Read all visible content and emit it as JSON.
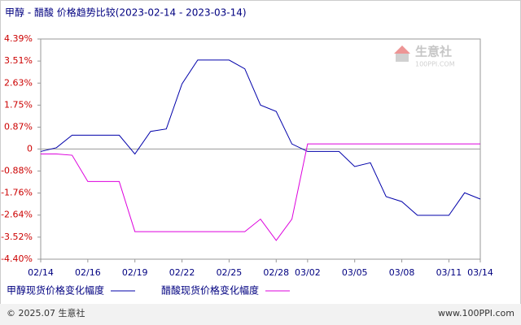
{
  "chart_data": {
    "type": "line",
    "title": "甲醇 - 醋酸 价格趋势比较(2023-02-14 - 2023-03-14)",
    "categories": [
      "02/14",
      null,
      null,
      "02/16",
      null,
      null,
      "02/19",
      null,
      null,
      "02/22",
      null,
      null,
      "02/25",
      null,
      null,
      "02/28",
      null,
      "03/02",
      null,
      null,
      "03/05",
      null,
      null,
      "03/08",
      null,
      null,
      "03/11",
      null,
      "03/14"
    ],
    "series": [
      {
        "name": "甲醇现货价格变化幅度",
        "color": "#0000aa",
        "values": [
          -0.1,
          0.05,
          0.55,
          0.55,
          0.55,
          0.55,
          -0.2,
          0.7,
          0.8,
          2.6,
          3.55,
          3.55,
          3.55,
          3.2,
          1.75,
          1.5,
          0.2,
          -0.1,
          -0.1,
          -0.1,
          -0.7,
          -0.55,
          -1.9,
          -2.1,
          -2.65,
          -2.65,
          -2.65,
          -1.75,
          -2.0
        ]
      },
      {
        "name": "醋酸现货价格变化幅度",
        "color": "#dd00dd",
        "values": [
          -0.2,
          -0.2,
          -0.25,
          -1.3,
          -1.3,
          -1.3,
          -3.3,
          -3.3,
          -3.3,
          -3.3,
          -3.3,
          -3.3,
          -3.3,
          -3.3,
          -2.8,
          -3.65,
          -2.8,
          0.2,
          0.2,
          0.2,
          0.2,
          0.2,
          0.2,
          0.2,
          0.2,
          0.2,
          0.2,
          0.2,
          0.2
        ]
      }
    ],
    "ylim": [
      -4.4,
      4.39
    ],
    "yticks": [
      {
        "value": 4.39,
        "label": "4.39%"
      },
      {
        "value": 3.51,
        "label": "3.51%"
      },
      {
        "value": 2.63,
        "label": "2.63%"
      },
      {
        "value": 1.75,
        "label": "1.75%"
      },
      {
        "value": 0.87,
        "label": "0.87%"
      },
      0,
      {
        "value": -0.88,
        "label": "-0.88%"
      },
      {
        "value": -1.76,
        "label": "-1.76%"
      },
      {
        "value": -2.64,
        "label": "-2.64%"
      },
      {
        "value": -3.52,
        "label": "-3.52%"
      },
      {
        "value": -4.4,
        "label": "-4.40%"
      }
    ],
    "watermark": {
      "name": "生意社",
      "site": "100PPI.COM"
    },
    "footer": {
      "copyright": "© 2025.07 生意社",
      "url": "www.100PPI.com"
    }
  }
}
